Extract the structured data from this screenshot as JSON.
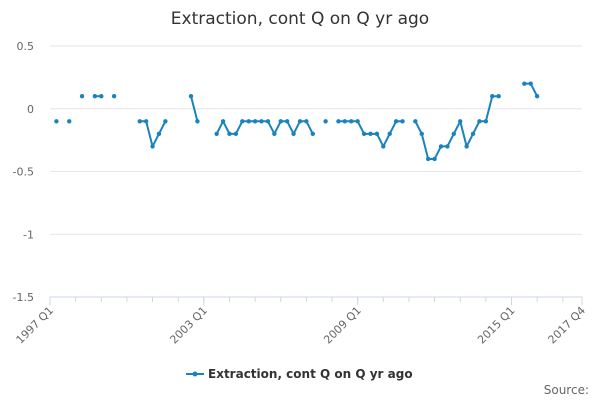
{
  "chart_data": {
    "type": "line",
    "title": "Extraction, cont Q on Q yr ago",
    "xlabel": "",
    "ylabel": "",
    "ylim": [
      -1.5,
      0.5
    ],
    "yticks": [
      0.5,
      0,
      -0.5,
      -1,
      -1.5
    ],
    "ytick_labels": [
      "0.5",
      "0",
      "-0.5",
      "-1",
      "-1.5"
    ],
    "x_axis_start": "1997 Q1",
    "x_axis_end": "2017 Q4",
    "xtick_labels": [
      "1997 Q1",
      "2003 Q1",
      "2009 Q1",
      "2015 Q1",
      "2017 Q4"
    ],
    "grid": "horizontal",
    "legend_position": "bottom",
    "series": [
      {
        "name": "Extraction, cont Q on Q yr ago",
        "color": "#1a83be",
        "points": [
          {
            "x": "1997 Q2",
            "y": -0.1
          },
          {
            "x": "1997 Q3",
            "y": null
          },
          {
            "x": "1997 Q4",
            "y": -0.1
          },
          {
            "x": "1998 Q1",
            "y": null
          },
          {
            "x": "1998 Q2",
            "y": 0.1
          },
          {
            "x": "1998 Q3",
            "y": null
          },
          {
            "x": "1998 Q4",
            "y": 0.1
          },
          {
            "x": "1999 Q1",
            "y": 0.1
          },
          {
            "x": "1999 Q2",
            "y": null
          },
          {
            "x": "1999 Q3",
            "y": 0.1
          },
          {
            "x": "1999 Q4",
            "y": null
          },
          {
            "x": "2000 Q1",
            "y": null
          },
          {
            "x": "2000 Q2",
            "y": null
          },
          {
            "x": "2000 Q3",
            "y": -0.1
          },
          {
            "x": "2000 Q4",
            "y": -0.1
          },
          {
            "x": "2001 Q1",
            "y": -0.3
          },
          {
            "x": "2001 Q2",
            "y": -0.2
          },
          {
            "x": "2001 Q3",
            "y": -0.1
          },
          {
            "x": "2001 Q4",
            "y": null
          },
          {
            "x": "2002 Q1",
            "y": null
          },
          {
            "x": "2002 Q2",
            "y": null
          },
          {
            "x": "2002 Q3",
            "y": 0.1
          },
          {
            "x": "2002 Q4",
            "y": -0.1
          },
          {
            "x": "2003 Q1",
            "y": null
          },
          {
            "x": "2003 Q2",
            "y": null
          },
          {
            "x": "2003 Q3",
            "y": -0.2
          },
          {
            "x": "2003 Q4",
            "y": -0.1
          },
          {
            "x": "2004 Q1",
            "y": -0.2
          },
          {
            "x": "2004 Q2",
            "y": -0.2
          },
          {
            "x": "2004 Q3",
            "y": -0.1
          },
          {
            "x": "2004 Q4",
            "y": -0.1
          },
          {
            "x": "2005 Q1",
            "y": -0.1
          },
          {
            "x": "2005 Q2",
            "y": -0.1
          },
          {
            "x": "2005 Q3",
            "y": -0.1
          },
          {
            "x": "2005 Q4",
            "y": -0.2
          },
          {
            "x": "2006 Q1",
            "y": -0.1
          },
          {
            "x": "2006 Q2",
            "y": -0.1
          },
          {
            "x": "2006 Q3",
            "y": -0.2
          },
          {
            "x": "2006 Q4",
            "y": -0.1
          },
          {
            "x": "2007 Q1",
            "y": -0.1
          },
          {
            "x": "2007 Q2",
            "y": -0.2
          },
          {
            "x": "2007 Q3",
            "y": null
          },
          {
            "x": "2007 Q4",
            "y": -0.1
          },
          {
            "x": "2008 Q1",
            "y": null
          },
          {
            "x": "2008 Q2",
            "y": -0.1
          },
          {
            "x": "2008 Q3",
            "y": -0.1
          },
          {
            "x": "2008 Q4",
            "y": -0.1
          },
          {
            "x": "2009 Q1",
            "y": -0.1
          },
          {
            "x": "2009 Q2",
            "y": -0.2
          },
          {
            "x": "2009 Q3",
            "y": -0.2
          },
          {
            "x": "2009 Q4",
            "y": -0.2
          },
          {
            "x": "2010 Q1",
            "y": -0.3
          },
          {
            "x": "2010 Q2",
            "y": -0.2
          },
          {
            "x": "2010 Q3",
            "y": -0.1
          },
          {
            "x": "2010 Q4",
            "y": -0.1
          },
          {
            "x": "2011 Q1",
            "y": null
          },
          {
            "x": "2011 Q2",
            "y": -0.1
          },
          {
            "x": "2011 Q3",
            "y": -0.2
          },
          {
            "x": "2011 Q4",
            "y": -0.4
          },
          {
            "x": "2012 Q1",
            "y": -0.4
          },
          {
            "x": "2012 Q2",
            "y": -0.3
          },
          {
            "x": "2012 Q3",
            "y": -0.3
          },
          {
            "x": "2012 Q4",
            "y": -0.2
          },
          {
            "x": "2013 Q1",
            "y": -0.1
          },
          {
            "x": "2013 Q2",
            "y": -0.3
          },
          {
            "x": "2013 Q3",
            "y": -0.2
          },
          {
            "x": "2013 Q4",
            "y": -0.1
          },
          {
            "x": "2014 Q1",
            "y": -0.1
          },
          {
            "x": "2014 Q2",
            "y": 0.1
          },
          {
            "x": "2014 Q3",
            "y": 0.1
          },
          {
            "x": "2014 Q4",
            "y": null
          },
          {
            "x": "2015 Q1",
            "y": null
          },
          {
            "x": "2015 Q2",
            "y": null
          },
          {
            "x": "2015 Q3",
            "y": 0.2
          },
          {
            "x": "2015 Q4",
            "y": 0.2
          },
          {
            "x": "2016 Q1",
            "y": 0.1
          }
        ]
      }
    ]
  },
  "credits": {
    "source_label": "Source:"
  }
}
